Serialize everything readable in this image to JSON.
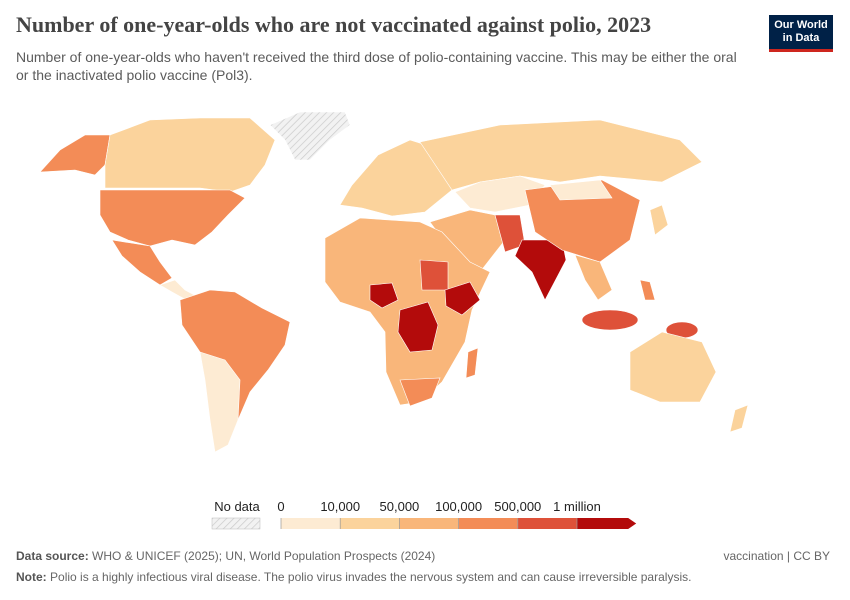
{
  "header": {
    "title": "Number of one-year-olds who are not vaccinated against polio, 2023",
    "subtitle": "Number of one-year-olds who haven't received the third dose of polio-containing vaccine. This may be either the oral or the inactivated polio vaccine (Pol3).",
    "logo": [
      "Our World",
      "in Data"
    ]
  },
  "legend": {
    "no_data": "No data",
    "ticks": [
      0,
      {
        "value": 10000,
        "label": "10,000"
      },
      {
        "value": 50000,
        "label": "50,000"
      },
      {
        "value": 100000,
        "label": "100,000"
      },
      {
        "value": 500000,
        "label": "500,000"
      },
      {
        "value": 1000000,
        "label": "1 million"
      }
    ],
    "colors": [
      "#fdebd3",
      "#fbd39c",
      "#f9b67a",
      "#f38c57",
      "#de5139",
      "#b30b0b"
    ]
  },
  "footer": {
    "source_label": "Data source:",
    "source": "WHO & UNICEF (2025); UN, World Population Prospects (2024)",
    "license": "vaccination | CC BY",
    "note_label": "Note:",
    "note": "Polio is a highly infectious viral disease. The polio virus invades the nervous system and can cause irreversible paralysis."
  }
}
